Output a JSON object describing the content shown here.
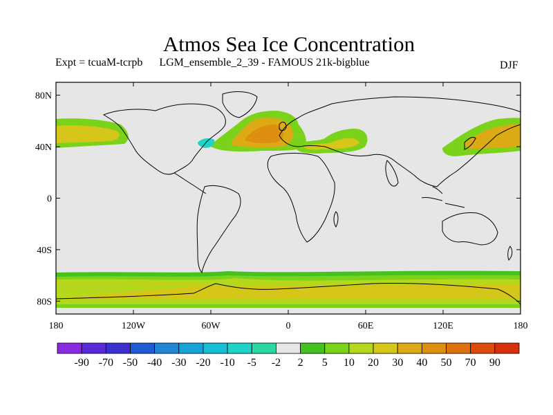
{
  "header": {
    "title": "Atmos Sea Ice Concentration",
    "experiment": "Expt = tcuaM-tcrpb",
    "run_name": "LGM_ensemble_2_39 - FAMOUS 21k-bigblue",
    "season": "DJF"
  },
  "map": {
    "projection": "cylindrical equidistant",
    "lon_range": [
      -180,
      180
    ],
    "lat_range": [
      -90,
      90
    ],
    "lat_tick_labels": [
      "80N",
      "40N",
      "0",
      "40S",
      "80S"
    ],
    "lat_tick_values": [
      80,
      40,
      0,
      -40,
      -80
    ],
    "lon_tick_labels": [
      "180",
      "120W",
      "60W",
      "0",
      "60E",
      "120E",
      "180"
    ],
    "lon_tick_values": [
      -180,
      -120,
      -60,
      0,
      60,
      120,
      180
    ],
    "background_color": "#e6e6e6"
  },
  "colorbar": {
    "labels": [
      "-90",
      "-70",
      "-50",
      "-40",
      "-30",
      "-20",
      "-10",
      "-5",
      "-2",
      "2",
      "5",
      "10",
      "20",
      "30",
      "40",
      "50",
      "70",
      "90"
    ],
    "colors": [
      "#8a2be2",
      "#5a2ad8",
      "#3b2fd0",
      "#1f5bd1",
      "#1f86d8",
      "#17a3d9",
      "#16bfd6",
      "#1fd3c8",
      "#2ad8a4",
      "#e6e6e6",
      "#44c21f",
      "#7bd21a",
      "#b5d81c",
      "#d7c61a",
      "#dcaa14",
      "#de8f10",
      "#de700e",
      "#dc4d0b",
      "#d8300b"
    ]
  }
}
